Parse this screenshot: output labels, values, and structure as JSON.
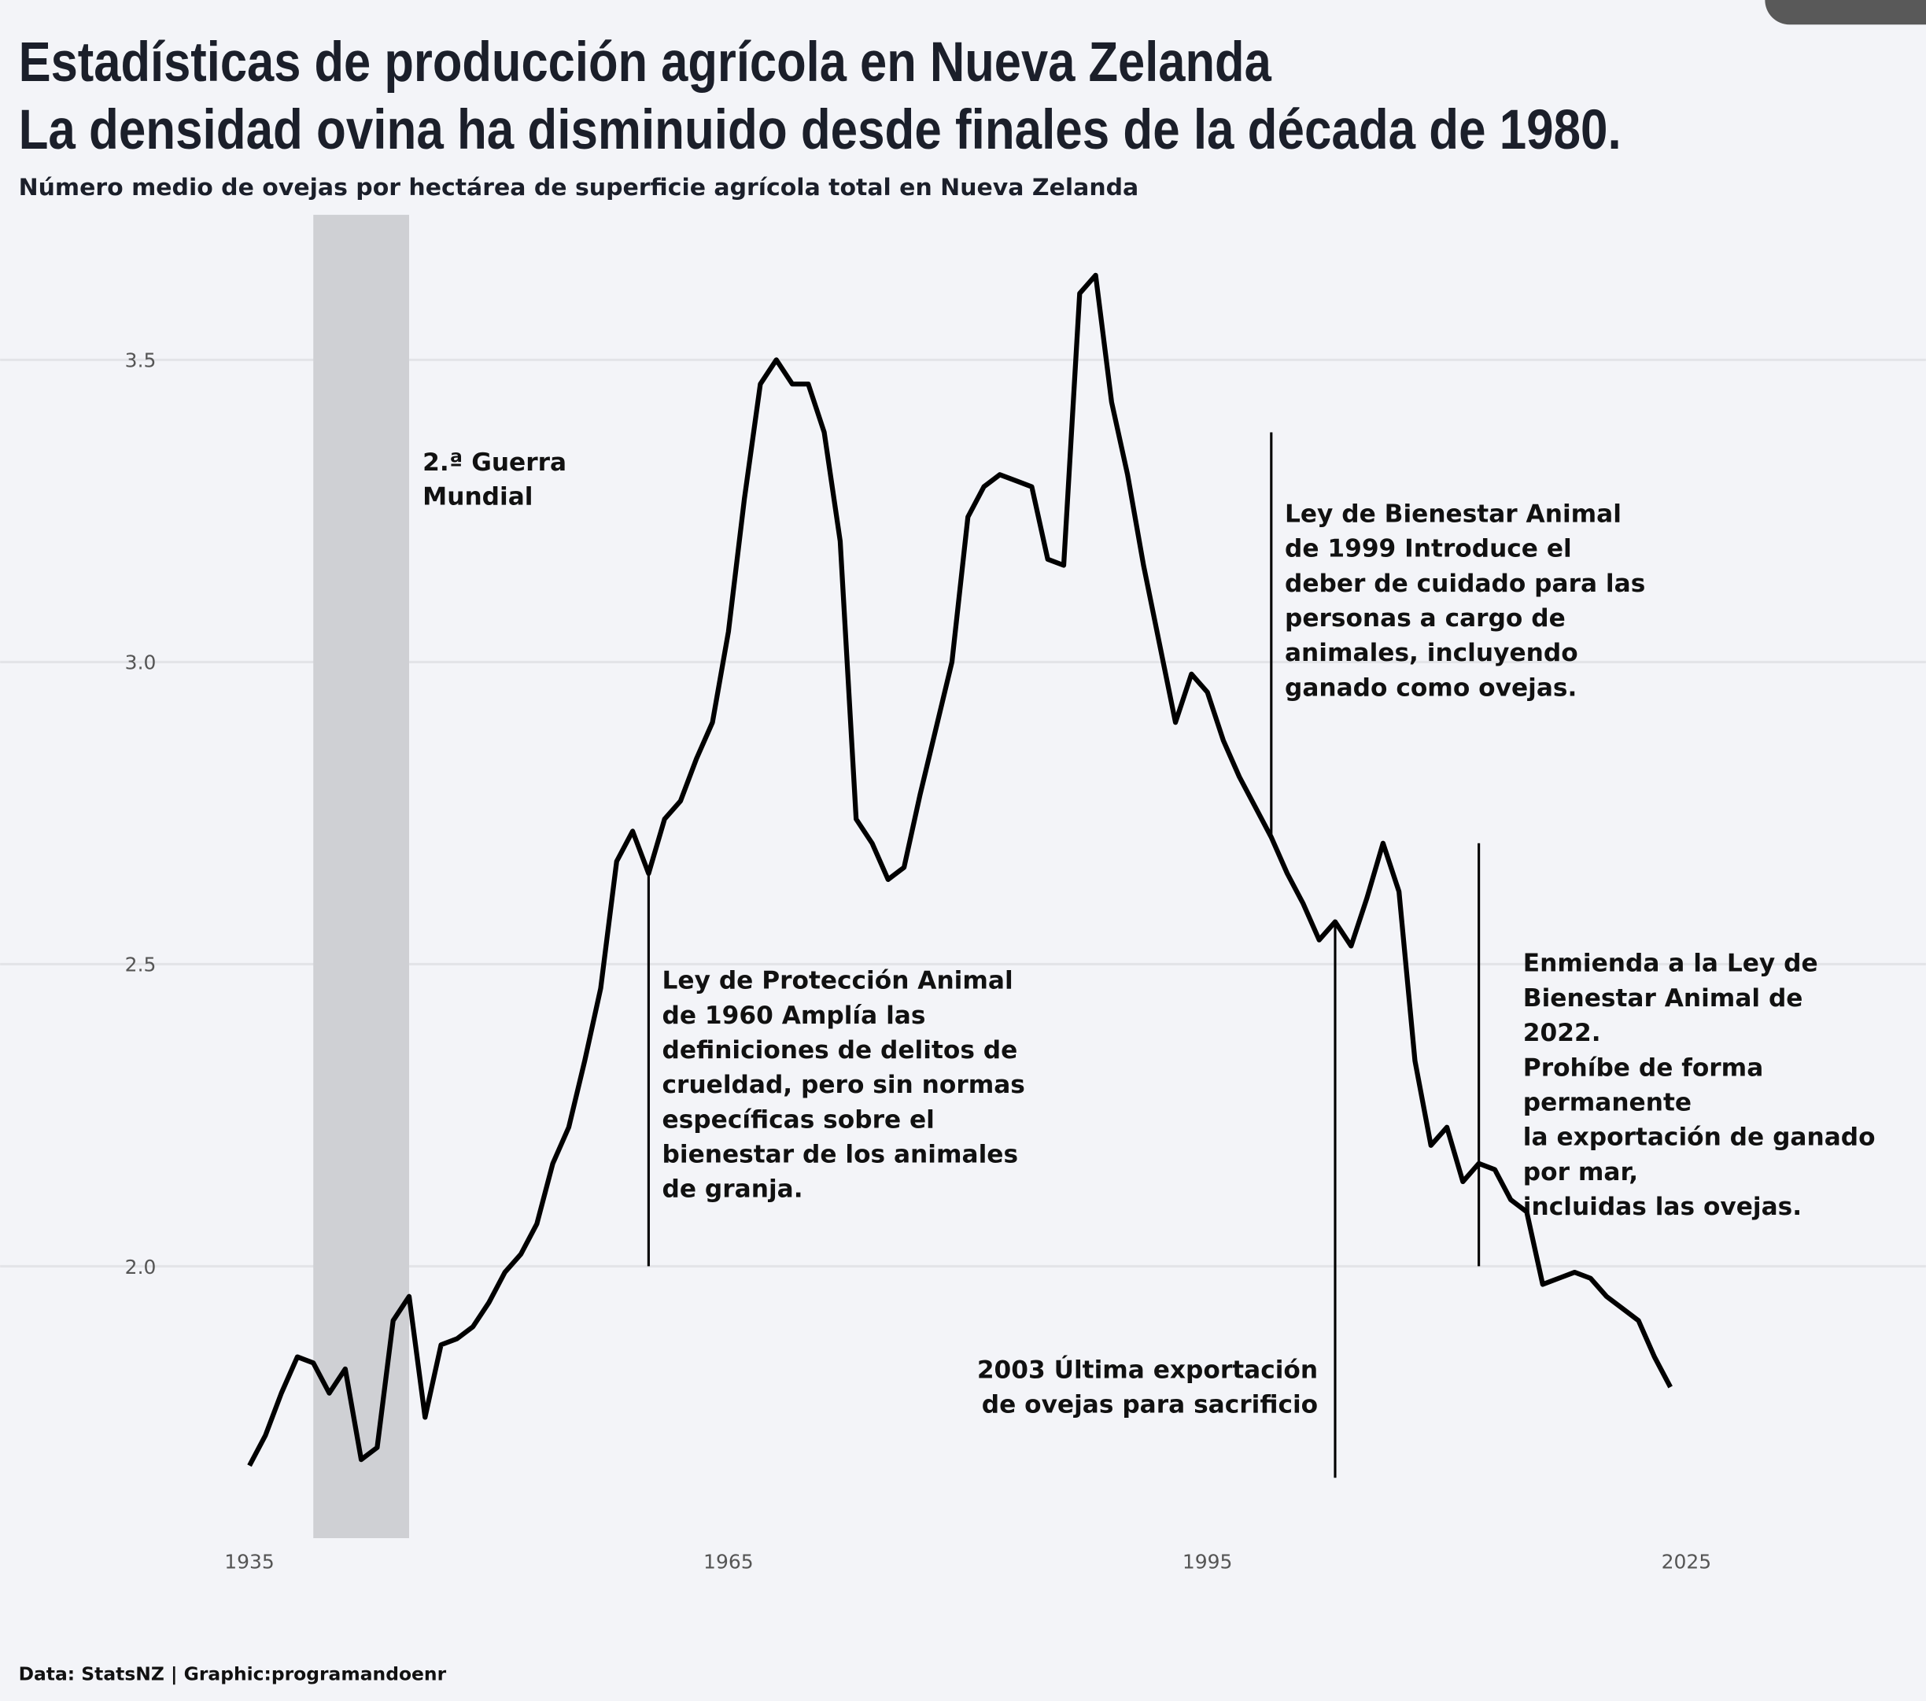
{
  "chart_data": {
    "type": "line",
    "title": "Estadísticas de producción agrícola en Nueva Zelanda",
    "title_line2": "La densidad ovina ha disminuido desde finales de la década de 1980.",
    "subtitle": "Número medio de ovejas por hectárea de superficie agrícola total en Nueva Zelanda",
    "caption": "Data: StatsNZ | Graphic:programandoenr",
    "xlabel": "",
    "ylabel": "",
    "xlim": [
      1935,
      2025
    ],
    "ylim": [
      1.55,
      3.74
    ],
    "x_ticks": [
      "1935",
      "1965",
      "1995",
      "2025"
    ],
    "y_ticks": [
      "2.0",
      "2.5",
      "3.0",
      "3.5"
    ],
    "grid": "horizontal",
    "line_color": "#000000",
    "x": [
      1935,
      1936,
      1937,
      1938,
      1939,
      1940,
      1941,
      1942,
      1943,
      1944,
      1945,
      1946,
      1947,
      1948,
      1949,
      1950,
      1951,
      1952,
      1953,
      1954,
      1955,
      1956,
      1957,
      1958,
      1959,
      1960,
      1961,
      1962,
      1963,
      1964,
      1965,
      1966,
      1967,
      1968,
      1969,
      1970,
      1971,
      1972,
      1973,
      1974,
      1975,
      1976,
      1977,
      1978,
      1979,
      1980,
      1981,
      1982,
      1983,
      1984,
      1985,
      1986,
      1987,
      1988,
      1989,
      1990,
      1991,
      1992,
      1993,
      1994,
      1995,
      1996,
      1997,
      1998,
      1999,
      2000,
      2001,
      2002,
      2003,
      2004,
      2005,
      2006,
      2007,
      2008,
      2009,
      2010,
      2011,
      2012,
      2013,
      2014,
      2015,
      2016,
      2017,
      2018,
      2019,
      2020,
      2021,
      2022,
      2023,
      2024
    ],
    "values": [
      1.67,
      1.72,
      1.79,
      1.85,
      1.84,
      1.79,
      1.83,
      1.68,
      1.7,
      1.91,
      1.95,
      1.75,
      1.87,
      1.88,
      1.9,
      1.94,
      1.99,
      2.02,
      2.07,
      2.17,
      2.23,
      2.34,
      2.46,
      2.67,
      2.72,
      2.65,
      2.74,
      2.77,
      2.84,
      2.9,
      3.05,
      3.27,
      3.46,
      3.5,
      3.46,
      3.46,
      3.38,
      3.2,
      2.74,
      2.7,
      2.64,
      2.66,
      2.78,
      2.89,
      3.0,
      3.24,
      3.29,
      3.31,
      3.3,
      3.29,
      3.17,
      3.16,
      3.61,
      3.64,
      3.43,
      3.31,
      3.16,
      3.03,
      2.9,
      2.98,
      2.95,
      2.87,
      2.81,
      2.76,
      2.71,
      2.65,
      2.6,
      2.54,
      2.57,
      2.53,
      2.61,
      2.7,
      2.62,
      2.34,
      2.2,
      2.23,
      2.14,
      2.17,
      2.16,
      2.11,
      2.09,
      1.97,
      1.98,
      1.99,
      1.98,
      1.95,
      1.93,
      1.91,
      1.85,
      1.8
    ],
    "shaded_band": {
      "from": 1939,
      "to": 1945,
      "color": "#cfd0d4",
      "label_lines": [
        "2.ª Guerra",
        "Mundial"
      ]
    },
    "annotations": [
      {
        "year": 1960,
        "line_from": 2.65,
        "line_to": 2.0,
        "lines": [
          "Ley de Protección Animal",
          "de 1960 Amplía las",
          "definiciones de delitos de",
          "crueldad, pero sin normas",
          "específicas sobre el",
          "bienestar de los animales",
          "de granja."
        ]
      },
      {
        "year": 1999,
        "line_from": 3.38,
        "line_to": 2.71,
        "lines": [
          "Ley de Bienestar Animal",
          "de 1999 Introduce el",
          "deber de cuidado para las",
          "personas a cargo de",
          "animales, incluyendo",
          "ganado como ovejas."
        ]
      },
      {
        "year": 2003,
        "line_from": 2.57,
        "line_to": 1.65,
        "lines": [
          "2003 Última exportación",
          "de ovejas para sacrificio"
        ]
      },
      {
        "year": 2012,
        "line_from": 2.7,
        "line_to": 2.0,
        "lines": [
          "Enmienda a la Ley de",
          "Bienestar Animal de",
          "2022.",
          "Prohíbe de forma",
          "permanente",
          "la exportación de ganado",
          "por mar,",
          "incluidas las ovejas."
        ]
      }
    ]
  }
}
